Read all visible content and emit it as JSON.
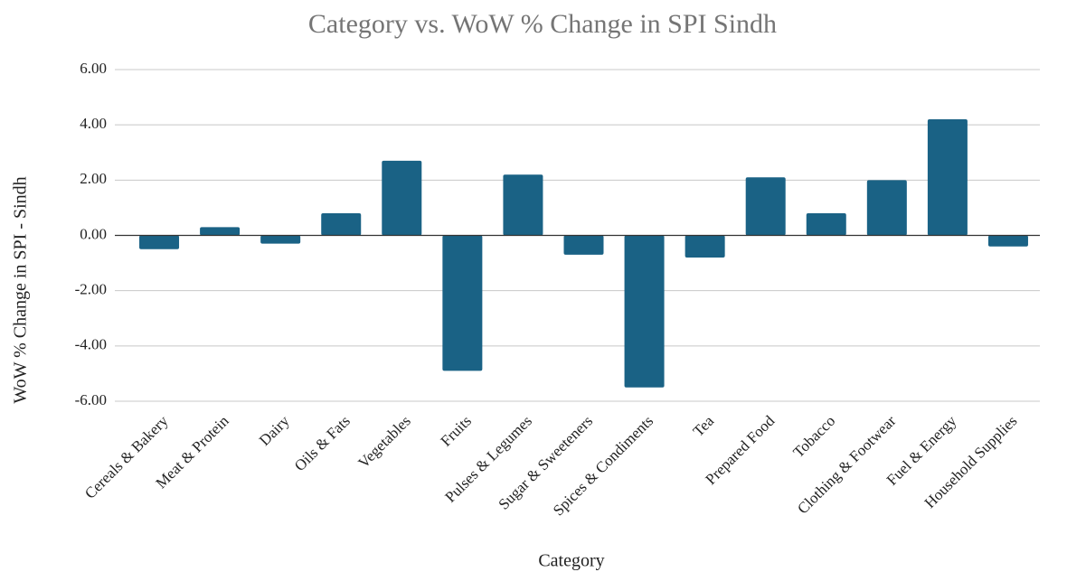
{
  "chart_data": {
    "type": "bar",
    "title": "Category vs. WoW % Change in SPI Sindh",
    "x_label": "Category",
    "y_label": "WoW % Change in SPI - Sindh",
    "categories": [
      "Cereals & Bakery",
      "Meat & Protein",
      "Dairy",
      "Oils & Fats",
      "Vegetables",
      "Fruits",
      "Pulses & Legumes",
      "Sugar & Sweeteners",
      "Spices & Condiments",
      "Tea",
      "Prepared Food",
      "Tobacco",
      "Clothing & Footwear",
      "Fuel & Energy",
      "Household Supplies"
    ],
    "values": [
      -0.5,
      0.3,
      -0.3,
      0.8,
      2.7,
      -4.9,
      2.2,
      -0.7,
      -5.5,
      -0.8,
      2.1,
      0.8,
      2.0,
      4.2,
      -0.4
    ],
    "color": "#1a6285",
    "ylim": [
      -6,
      6
    ],
    "yticks": [
      {
        "value": -6,
        "label": "-6.00"
      },
      {
        "value": -4,
        "label": "-4.00"
      },
      {
        "value": -2,
        "label": "-2.00"
      },
      {
        "value": 0,
        "label": "0.00"
      },
      {
        "value": 2,
        "label": "2.00"
      },
      {
        "value": 4,
        "label": "4.00"
      },
      {
        "value": 6,
        "label": "6.00"
      }
    ],
    "grid": true
  }
}
